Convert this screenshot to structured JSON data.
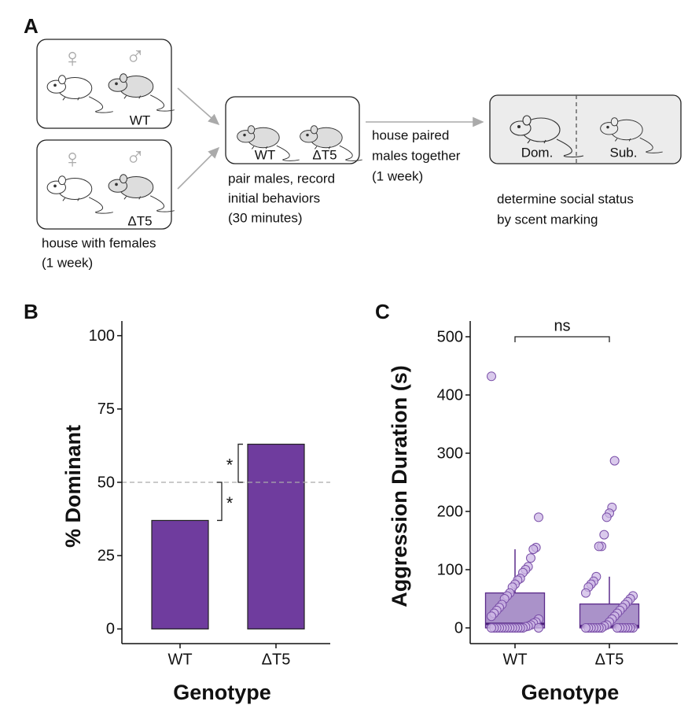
{
  "panel_labels": [
    "A",
    "B",
    "C"
  ],
  "diagram": {
    "housing": [
      {
        "symbols": [
          "♀",
          "♂"
        ],
        "label": "WT"
      },
      {
        "symbols": [
          "♀",
          "♂"
        ],
        "label": "ΔT5"
      }
    ],
    "housing_caption": [
      "house with females",
      "(1 week)"
    ],
    "pairing_labels": [
      "WT",
      "ΔT5"
    ],
    "pairing_caption": [
      "pair males, record",
      "initial behaviors",
      "(30 minutes)"
    ],
    "arrow_label": [
      "house paired",
      "males together",
      "(1 week)"
    ],
    "status_labels": [
      "Dom.",
      "Sub."
    ],
    "status_caption": [
      "determine social status",
      "by scent marking"
    ]
  },
  "chart_data": [
    {
      "type": "bar",
      "categories": [
        "WT",
        "ΔT5"
      ],
      "values": [
        37,
        63
      ],
      "color": "#6f3c9e",
      "ylim": [
        -5,
        105
      ],
      "yticks": [
        0,
        25,
        50,
        75,
        100
      ],
      "ylabel": "% Dominant",
      "xlabel": "Genotype",
      "hline": 50,
      "annotations": [
        {
          "text": "*",
          "from": 37,
          "to": 50
        },
        {
          "text": "*",
          "from": 50,
          "to": 63
        }
      ]
    },
    {
      "type": "box",
      "categories": [
        "WT",
        "ΔT5"
      ],
      "color": "#7a4fa8",
      "boxes": [
        {
          "min": 0,
          "q1": 0,
          "median": 7,
          "q3": 60,
          "max": 135
        },
        {
          "min": 0,
          "q1": 0,
          "median": 3,
          "q3": 41,
          "max": 88
        }
      ],
      "points": [
        [
          432,
          190,
          138,
          135,
          120,
          105,
          100,
          95,
          85,
          82,
          75,
          70,
          60,
          55,
          50,
          40,
          35,
          30,
          25,
          20,
          15,
          10,
          8,
          5,
          3,
          2,
          0,
          0,
          0,
          0,
          0,
          0,
          0,
          0,
          0,
          0,
          0,
          0,
          0,
          0
        ],
        [
          287,
          207,
          197,
          190,
          160,
          140,
          140,
          88,
          80,
          75,
          70,
          60,
          55,
          50,
          45,
          40,
          35,
          30,
          25,
          20,
          15,
          10,
          5,
          3,
          0,
          0,
          0,
          0,
          0,
          0,
          0,
          0,
          0,
          0,
          0,
          0,
          0,
          0
        ]
      ],
      "ylim": [
        -27,
        527
      ],
      "yticks": [
        0,
        100,
        200,
        300,
        400,
        500
      ],
      "ylabel": "Aggression Duration (s)",
      "xlabel": "Genotype",
      "comparison": {
        "text": "ns",
        "y": 500
      }
    }
  ]
}
